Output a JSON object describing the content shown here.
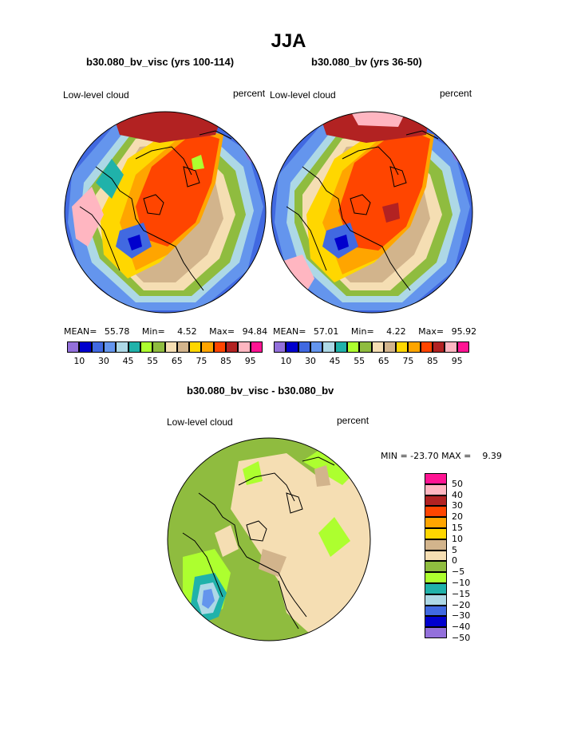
{
  "figure": {
    "title": "JJA",
    "panels": [
      {
        "case_title": "b30.080_bv_visc (yrs 100-114)",
        "variable": "Low-level cloud",
        "units": "percent",
        "stats": {
          "mean_label": "MEAN=",
          "mean": "55.78",
          "min_label": "Min=",
          "min": "4.52",
          "max_label": "Max=",
          "max": "94.84"
        }
      },
      {
        "case_title": "b30.080_bv (yrs 36-50)",
        "variable": "Low-level cloud",
        "units": "percent",
        "stats": {
          "mean_label": "MEAN=",
          "mean": "57.01",
          "min_label": "Min=",
          "min": "4.22",
          "max_label": "Max=",
          "max": "95.92"
        }
      }
    ],
    "colorbar": {
      "colors": [
        "#9370DB",
        "#0000CD",
        "#4169E1",
        "#6495ED",
        "#ADD8E6",
        "#20B2AA",
        "#ADFF2F",
        "#8FBC3F",
        "#F5DEB3",
        "#D2B48C",
        "#FFD700",
        "#FFA500",
        "#FF4500",
        "#B22222",
        "#FFB6C1",
        "#FF1493"
      ],
      "labels": [
        "10",
        "30",
        "45",
        "55",
        "65",
        "75",
        "85",
        "95"
      ]
    },
    "difference": {
      "title": "b30.080_bv_visc - b30.080_bv",
      "variable": "Low-level cloud",
      "units": "percent",
      "minmax": "MIN = -23.70 MAX =    9.39",
      "legend": {
        "colors": [
          "#FF1493",
          "#FFB6C1",
          "#B22222",
          "#FF4500",
          "#FFA500",
          "#FFD700",
          "#D2B48C",
          "#F5DEB3",
          "#8FBC3F",
          "#ADFF2F",
          "#20B2AA",
          "#ADD8E6",
          "#4169E1",
          "#0000CD",
          "#9370DB"
        ],
        "labels": [
          "50",
          "40",
          "30",
          "20",
          "15",
          "10",
          "5",
          "0",
          "−5",
          "−10",
          "−15",
          "−20",
          "−30",
          "−40",
          "−50"
        ]
      }
    },
    "palette": {
      "purple": "#9370DB",
      "navy": "#0000CD",
      "blue": "#4169E1",
      "cornflower": "#6495ED",
      "lightblue": "#ADD8E6",
      "teal": "#20B2AA",
      "lime": "#ADFF2F",
      "green": "#8FBC3F",
      "wheat": "#F5DEB3",
      "tan": "#D2B48C",
      "gold": "#FFD700",
      "orange": "#FFA500",
      "red": "#FF4500",
      "darkred": "#B22222",
      "pink": "#FFB6C1",
      "magenta": "#FF1493"
    }
  }
}
